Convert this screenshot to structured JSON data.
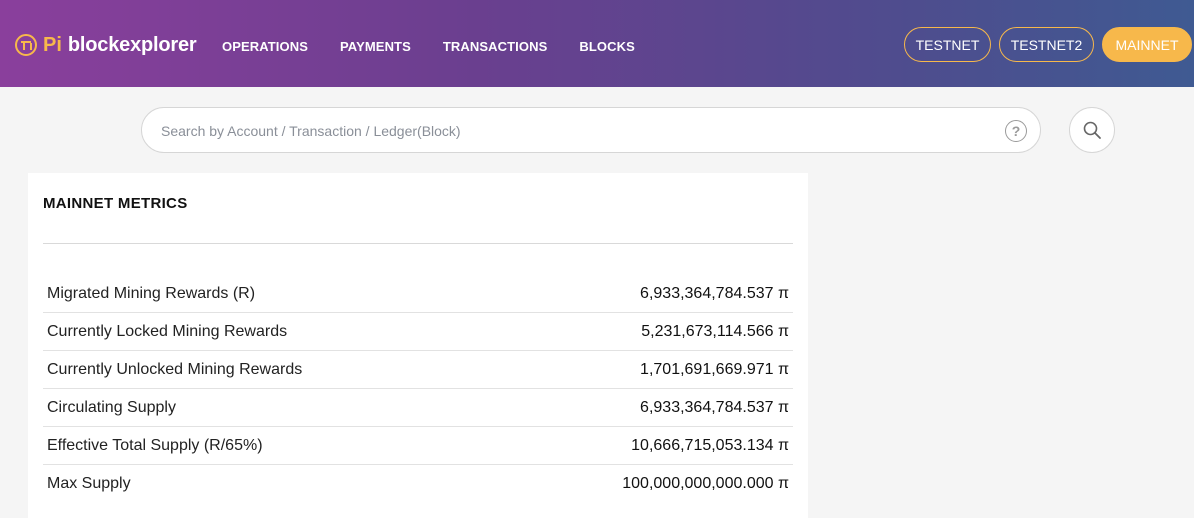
{
  "header": {
    "logo_pi": "Pi",
    "logo_text": "blockexplorer",
    "nav": [
      "OPERATIONS",
      "PAYMENTS",
      "TRANSACTIONS",
      "BLOCKS"
    ],
    "networks": [
      "TESTNET",
      "TESTNET2",
      "MAINNET"
    ],
    "active_network": "MAINNET",
    "colors": {
      "accent": "#f7b84b",
      "gradient_start": "#8a3f9c",
      "gradient_end": "#3f5a92"
    }
  },
  "search": {
    "placeholder": "Search by Account / Transaction / Ledger(Block)",
    "value": "",
    "help_glyph": "?"
  },
  "card": {
    "title": "MAINNET METRICS",
    "rows": [
      {
        "label": "Migrated Mining Rewards (R)",
        "value": "6,933,364,784.537 π"
      },
      {
        "label": "Currently Locked Mining Rewards",
        "value": "5,231,673,114.566 π"
      },
      {
        "label": "Currently Unlocked Mining Rewards",
        "value": "1,701,691,669.971 π"
      },
      {
        "label": "Circulating Supply",
        "value": "6,933,364,784.537 π"
      },
      {
        "label": "Effective Total Supply (R/65%)",
        "value": "10,666,715,053.134 π"
      },
      {
        "label": "Max Supply",
        "value": "100,000,000,000.000 π"
      }
    ]
  },
  "icons": {
    "logo": "pi-logo-icon",
    "help": "question-circle-icon",
    "search": "search-icon"
  }
}
